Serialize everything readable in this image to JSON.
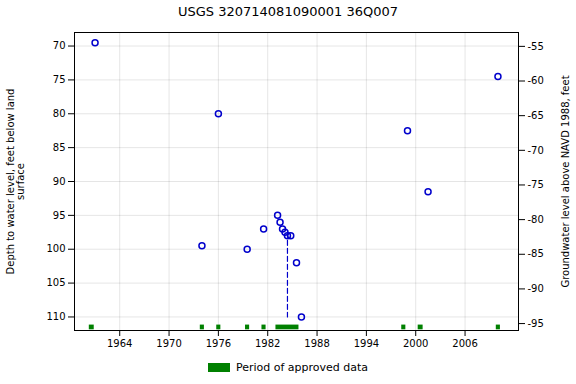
{
  "chart_data": {
    "type": "scatter",
    "title": "USGS 320714081090001 36Q007",
    "ylabel": "Depth to water level, feet below land\nsurface",
    "y2label": "Groundwater level above NAVD 1988, feet",
    "xlim": [
      1958.5,
      2012.5
    ],
    "xticks": [
      1964,
      1970,
      1976,
      1982,
      1988,
      1994,
      2000,
      2006
    ],
    "ylim": [
      112,
      68
    ],
    "yticks": [
      70,
      75,
      80,
      85,
      90,
      95,
      100,
      105,
      110
    ],
    "y2lim": [
      -96,
      -53
    ],
    "y2ticks": [
      -55,
      -60,
      -65,
      -70,
      -75,
      -80,
      -85,
      -90,
      -95
    ],
    "grid": true,
    "legend": "bottom",
    "series": [
      {
        "type": "scatter",
        "marker": "circle",
        "color": "#0000cc",
        "x": [
          1961.0,
          1974.0,
          1976.0,
          1979.5,
          1981.5,
          1983.2,
          1983.5,
          1983.8,
          1984.1,
          1984.4,
          1984.8,
          1985.5,
          1986.1,
          1999.0,
          2001.5,
          2010.0
        ],
        "values": [
          69.5,
          99.5,
          80.0,
          100.0,
          97.0,
          95.0,
          96.0,
          97.0,
          97.5,
          98.0,
          98.0,
          102.0,
          110.0,
          82.5,
          91.5,
          74.5
        ]
      },
      {
        "type": "line",
        "line_style": "dashed",
        "color": "#0000cc",
        "x": [
          1984.4,
          1984.4
        ],
        "values": [
          97.5,
          110.0
        ]
      },
      {
        "type": "bar",
        "name": "Period of approved data",
        "color": "#008000",
        "x": [
          1960.3,
          1973.8,
          1975.8,
          1979.3,
          1981.3,
          1983.0,
          1998.3,
          2000.3,
          2009.8
        ],
        "widths": [
          0.6,
          0.5,
          0.5,
          0.5,
          0.5,
          2.8,
          0.5,
          0.6,
          0.5
        ],
        "bottom": 111.2,
        "height": 0.7
      }
    ]
  }
}
